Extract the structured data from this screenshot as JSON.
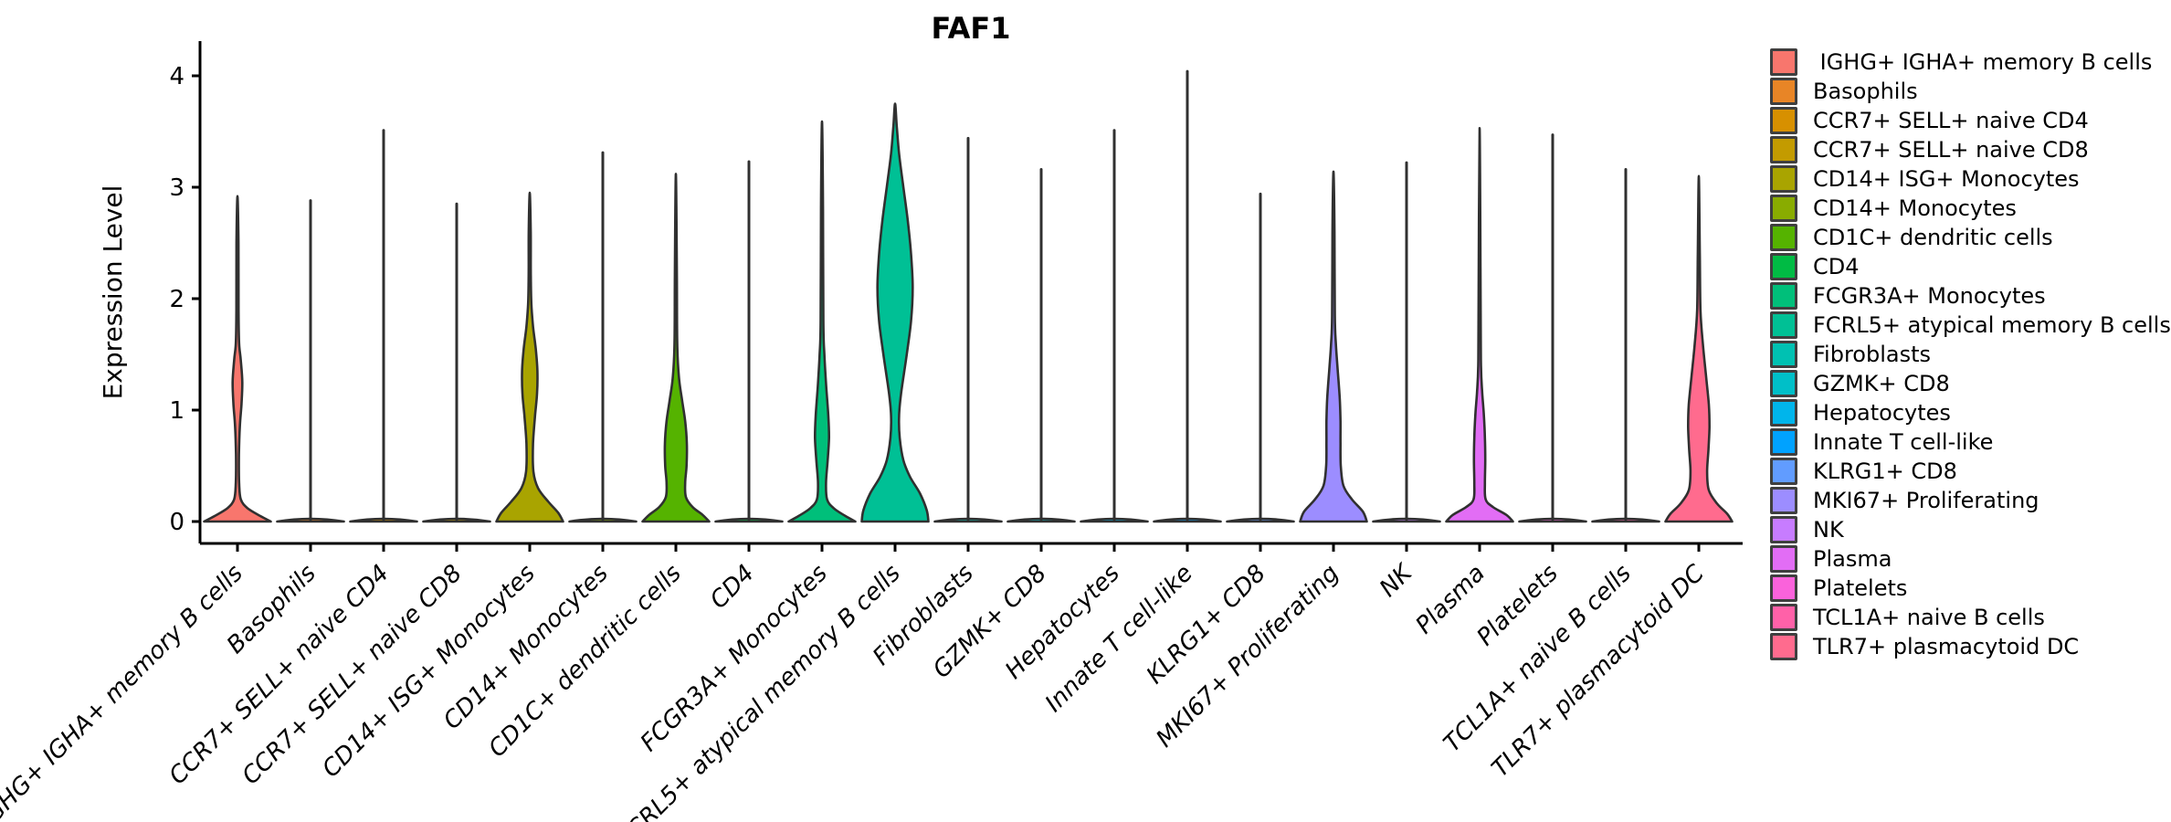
{
  "page": {
    "background": "#ffffff"
  },
  "style": {
    "violin_outline": "#303030",
    "axis_color": "#000000",
    "text_color": "#000000",
    "legend_swatch_border": "#3f3f3f"
  },
  "chart_data": {
    "type": "violin",
    "title": "FAF1",
    "ylabel": "Expression Level",
    "xlabel": "",
    "yticks": [
      0,
      1,
      2,
      3,
      4
    ],
    "ylim": [
      0,
      4.1
    ],
    "grid": false,
    "legend_position": "right",
    "x_tick_angle": -45,
    "categories": [
      "IGHG+ IGHA+ memory B cells",
      "Basophils",
      "CCR7+ SELL+ naive CD4",
      "CCR7+ SELL+ naive CD8",
      "CD14+ ISG+ Monocytes",
      "CD14+ Monocytes",
      "CD1C+ dendritic cells",
      "CD4",
      "FCGR3A+ Monocytes",
      "FCRL5+ atypical memory B cells",
      "Fibroblasts",
      "GZMK+ CD8",
      "Hepatocytes",
      "Innate T cell-like",
      "KLRG1+ CD8",
      "MKI67+ Proliferating",
      "NK",
      "Plasma",
      "Platelets",
      "TCL1A+ naive B cells",
      "TLR7+ plasmacytoid DC"
    ],
    "series": [
      {
        "label": "IGHG+ IGHA+ memory B cells",
        "color": "#F8766D",
        "max": 2.92,
        "shape": "violin",
        "profile": [
          [
            0,
            1
          ],
          [
            0.05,
            0.68
          ],
          [
            0.12,
            0.3
          ],
          [
            0.2,
            0.1
          ],
          [
            0.35,
            0.05
          ],
          [
            0.6,
            0.045
          ],
          [
            0.85,
            0.07
          ],
          [
            1.05,
            0.12
          ],
          [
            1.25,
            0.145
          ],
          [
            1.45,
            0.1
          ],
          [
            1.6,
            0.05
          ],
          [
            1.9,
            0.032
          ],
          [
            2.5,
            0.03
          ],
          [
            2.92,
            0
          ]
        ]
      },
      {
        "label": "Basophils",
        "color": "#E88526",
        "max": 2.88,
        "shape": "line",
        "profile": null
      },
      {
        "label": "CCR7+ SELL+ naive CD4",
        "color": "#D79000",
        "max": 3.51,
        "shape": "line",
        "profile": null
      },
      {
        "label": "CCR7+ SELL+ naive CD8",
        "color": "#C39B00",
        "max": 2.85,
        "shape": "line",
        "profile": null
      },
      {
        "label": "CD14+ ISG+ Monocytes",
        "color": "#A9A400",
        "max": 2.95,
        "shape": "violin",
        "profile": [
          [
            0,
            1
          ],
          [
            0.08,
            0.85
          ],
          [
            0.18,
            0.55
          ],
          [
            0.3,
            0.25
          ],
          [
            0.45,
            0.11
          ],
          [
            0.7,
            0.1
          ],
          [
            0.95,
            0.16
          ],
          [
            1.15,
            0.22
          ],
          [
            1.35,
            0.23
          ],
          [
            1.55,
            0.18
          ],
          [
            1.75,
            0.1
          ],
          [
            1.95,
            0.05
          ],
          [
            2.2,
            0.032
          ],
          [
            2.6,
            0.03
          ],
          [
            2.95,
            0
          ]
        ]
      },
      {
        "label": "CD14+ Monocytes",
        "color": "#89AC00",
        "max": 3.31,
        "shape": "line",
        "profile": null
      },
      {
        "label": "CD1C+ dendritic cells",
        "color": "#55B300",
        "max": 3.12,
        "shape": "violin",
        "profile": [
          [
            0,
            1
          ],
          [
            0.06,
            0.8
          ],
          [
            0.13,
            0.5
          ],
          [
            0.22,
            0.3
          ],
          [
            0.35,
            0.28
          ],
          [
            0.5,
            0.32
          ],
          [
            0.7,
            0.33
          ],
          [
            0.9,
            0.28
          ],
          [
            1.1,
            0.18
          ],
          [
            1.3,
            0.09
          ],
          [
            1.6,
            0.04
          ],
          [
            2.2,
            0.03
          ],
          [
            3.12,
            0
          ]
        ]
      },
      {
        "label": "CD4",
        "color": "#00BB44",
        "max": 3.23,
        "shape": "line",
        "profile": null
      },
      {
        "label": "FCGR3A+ Monocytes",
        "color": "#00BF7A",
        "max": 3.59,
        "shape": "violin",
        "profile": [
          [
            0,
            1
          ],
          [
            0.05,
            0.7
          ],
          [
            0.12,
            0.35
          ],
          [
            0.2,
            0.15
          ],
          [
            0.35,
            0.12
          ],
          [
            0.55,
            0.17
          ],
          [
            0.75,
            0.21
          ],
          [
            0.95,
            0.19
          ],
          [
            1.2,
            0.13
          ],
          [
            1.5,
            0.07
          ],
          [
            1.8,
            0.04
          ],
          [
            2.8,
            0.03
          ],
          [
            3.59,
            0
          ]
        ]
      },
      {
        "label": "FCRL5+ atypical memory B cells",
        "color": "#00C095",
        "max": 3.75,
        "shape": "violin",
        "profile": [
          [
            0,
            1
          ],
          [
            0.1,
            0.95
          ],
          [
            0.25,
            0.75
          ],
          [
            0.4,
            0.45
          ],
          [
            0.55,
            0.25
          ],
          [
            0.75,
            0.14
          ],
          [
            0.95,
            0.12
          ],
          [
            1.15,
            0.18
          ],
          [
            1.5,
            0.35
          ],
          [
            1.8,
            0.48
          ],
          [
            2.1,
            0.53
          ],
          [
            2.4,
            0.48
          ],
          [
            2.7,
            0.38
          ],
          [
            3.0,
            0.25
          ],
          [
            3.3,
            0.12
          ],
          [
            3.55,
            0.05
          ],
          [
            3.75,
            0
          ]
        ]
      },
      {
        "label": "Fibroblasts",
        "color": "#00C1B2",
        "max": 3.44,
        "shape": "line",
        "profile": null
      },
      {
        "label": "GZMK+ CD8",
        "color": "#00BFC8",
        "max": 3.16,
        "shape": "line",
        "profile": null
      },
      {
        "label": "Hepatocytes",
        "color": "#00B5EB",
        "max": 3.51,
        "shape": "line",
        "profile": null
      },
      {
        "label": "Innate T cell-like",
        "color": "#00A2FF",
        "max": 4.04,
        "shape": "line",
        "profile": null
      },
      {
        "label": "KLRG1+ CD8",
        "color": "#619CFF",
        "max": 2.94,
        "shape": "line",
        "profile": null
      },
      {
        "label": "MKI67+ Proliferating",
        "color": "#9C8DFF",
        "max": 3.14,
        "shape": "violin",
        "profile": [
          [
            0,
            1
          ],
          [
            0.09,
            0.88
          ],
          [
            0.2,
            0.55
          ],
          [
            0.32,
            0.3
          ],
          [
            0.5,
            0.22
          ],
          [
            0.7,
            0.21
          ],
          [
            0.9,
            0.21
          ],
          [
            1.1,
            0.19
          ],
          [
            1.35,
            0.13
          ],
          [
            1.6,
            0.07
          ],
          [
            1.85,
            0.04
          ],
          [
            2.6,
            0.03
          ],
          [
            3.14,
            0
          ]
        ]
      },
      {
        "label": "NK",
        "color": "#C77CFF",
        "max": 3.22,
        "shape": "line",
        "profile": null
      },
      {
        "label": "Plasma",
        "color": "#E26DF5",
        "max": 3.53,
        "shape": "violin",
        "profile": [
          [
            0,
            1
          ],
          [
            0.06,
            0.8
          ],
          [
            0.13,
            0.4
          ],
          [
            0.2,
            0.18
          ],
          [
            0.35,
            0.16
          ],
          [
            0.55,
            0.17
          ],
          [
            0.75,
            0.16
          ],
          [
            0.95,
            0.13
          ],
          [
            1.15,
            0.08
          ],
          [
            1.4,
            0.04
          ],
          [
            2.0,
            0.03
          ],
          [
            3.53,
            0
          ]
        ]
      },
      {
        "label": "Platelets",
        "color": "#FA62DB",
        "max": 3.47,
        "shape": "line",
        "profile": null
      },
      {
        "label": "TCL1A+ naive B cells",
        "color": "#FF61A8",
        "max": 3.16,
        "shape": "line",
        "profile": null
      },
      {
        "label": "TLR7+ plasmacytoid DC",
        "color": "#FF6B8E",
        "max": 3.1,
        "shape": "violin",
        "profile": [
          [
            0,
            1
          ],
          [
            0.07,
            0.85
          ],
          [
            0.16,
            0.55
          ],
          [
            0.28,
            0.3
          ],
          [
            0.45,
            0.25
          ],
          [
            0.65,
            0.29
          ],
          [
            0.85,
            0.32
          ],
          [
            1.05,
            0.3
          ],
          [
            1.3,
            0.22
          ],
          [
            1.6,
            0.12
          ],
          [
            1.9,
            0.05
          ],
          [
            2.4,
            0.03
          ],
          [
            3.1,
            0
          ]
        ]
      }
    ]
  },
  "legend": {
    "items": [
      {
        "label": " IGHG+ IGHA+ memory B cells",
        "color": "#F8766D"
      },
      {
        "label": "Basophils",
        "color": "#E88526"
      },
      {
        "label": "CCR7+ SELL+ naive CD4",
        "color": "#D79000"
      },
      {
        "label": "CCR7+ SELL+ naive CD8",
        "color": "#C39B00"
      },
      {
        "label": "CD14+ ISG+ Monocytes",
        "color": "#A9A400"
      },
      {
        "label": "CD14+ Monocytes",
        "color": "#89AC00"
      },
      {
        "label": "CD1C+ dendritic cells",
        "color": "#55B300"
      },
      {
        "label": "CD4",
        "color": "#00BB44"
      },
      {
        "label": "FCGR3A+ Monocytes",
        "color": "#00BF7A"
      },
      {
        "label": "FCRL5+ atypical memory B cells",
        "color": "#00C095"
      },
      {
        "label": "Fibroblasts",
        "color": "#00C1B2"
      },
      {
        "label": "GZMK+ CD8",
        "color": "#00BFC8"
      },
      {
        "label": "Hepatocytes",
        "color": "#00B5EB"
      },
      {
        "label": "Innate T cell-like",
        "color": "#00A2FF"
      },
      {
        "label": "KLRG1+ CD8",
        "color": "#619CFF"
      },
      {
        "label": "MKI67+ Proliferating",
        "color": "#9C8DFF"
      },
      {
        "label": "NK",
        "color": "#C77CFF"
      },
      {
        "label": "Plasma",
        "color": "#E26DF5"
      },
      {
        "label": "Platelets",
        "color": "#FA62DB"
      },
      {
        "label": "TCL1A+ naive B cells",
        "color": "#FF61A8"
      },
      {
        "label": "TLR7+ plasmacytoid DC",
        "color": "#FF6B8E"
      }
    ]
  }
}
